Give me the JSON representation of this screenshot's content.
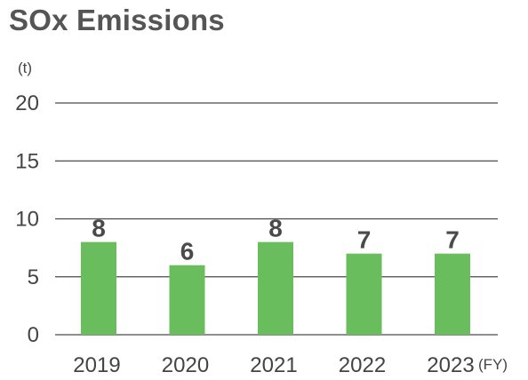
{
  "title": "SOx Emissions",
  "chart_data": {
    "type": "bar",
    "title": "SOx Emissions",
    "ylabel": "(t)",
    "xlabel": "(FY)",
    "categories": [
      "2019",
      "2020",
      "2021",
      "2022",
      "2023"
    ],
    "values": [
      8,
      6,
      8,
      7,
      7
    ],
    "data_labels": [
      "8",
      "6",
      "8",
      "7",
      "7"
    ],
    "yticks": [
      0,
      5,
      10,
      15,
      20
    ],
    "ylim": [
      0,
      20
    ],
    "grid": true,
    "legend": "none",
    "bar_color": "#6abd5c"
  }
}
